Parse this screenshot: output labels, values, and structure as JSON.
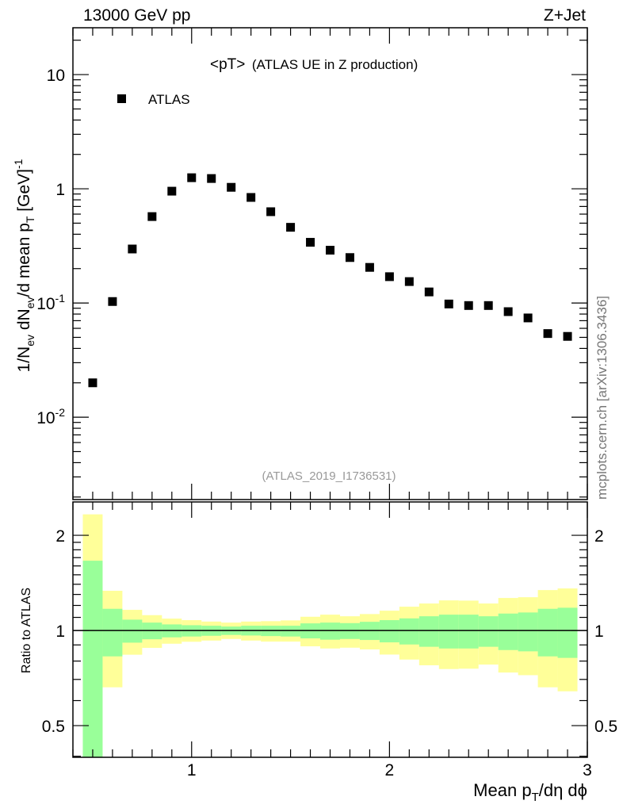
{
  "header": {
    "left": "13000 GeV pp",
    "right": "Z+Jet"
  },
  "side_label": "mcplots.cern.ch [arXiv:1306.3436]",
  "chart_data": [
    {
      "type": "scatter",
      "title_main": "<pT>",
      "title_sub": "(ATLAS UE in Z production)",
      "analysis_id": "(ATLAS_2019_I1736531)",
      "ylabel_parts": {
        "a": "1/N",
        "a_sub": "ev",
        "b": " dN",
        "b_sub": "ev",
        "c": "/d mean p",
        "c_sub": "T",
        "d": " [GeV]",
        "d_sup": "-1"
      },
      "xscale": "linear",
      "yscale": "log",
      "xlim": [
        0.4,
        3.0
      ],
      "ylim": [
        0.0019,
        25.7
      ],
      "yticks": [
        {
          "v": 10,
          "label": "10"
        },
        {
          "v": 1,
          "label": "1"
        },
        {
          "v": 0.1,
          "base": "10",
          "exp": "-1"
        },
        {
          "v": 0.01,
          "base": "10",
          "exp": "-2"
        }
      ],
      "legend": [
        {
          "name": "ATLAS",
          "marker": "square",
          "color": "#000000",
          "placement": "top-left"
        }
      ],
      "series": [
        {
          "name": "ATLAS",
          "x": [
            0.5,
            0.6,
            0.7,
            0.8,
            0.9,
            1.0,
            1.1,
            1.2,
            1.3,
            1.4,
            1.5,
            1.6,
            1.7,
            1.8,
            1.9,
            2.0,
            2.1,
            2.2,
            2.3,
            2.4,
            2.5,
            2.6,
            2.7,
            2.8,
            2.9
          ],
          "y": [
            0.02,
            0.103,
            0.297,
            0.571,
            0.953,
            1.25,
            1.23,
            1.03,
            0.84,
            0.63,
            0.46,
            0.34,
            0.29,
            0.25,
            0.205,
            0.17,
            0.154,
            0.125,
            0.098,
            0.095,
            0.095,
            0.084,
            0.074,
            0.054,
            0.051
          ]
        }
      ]
    },
    {
      "type": "area",
      "ylabel": "Ratio to ATLAS",
      "xlabel_parts": {
        "a": "Mean p",
        "a_sub": "T",
        "b": "/dη dϕ"
      },
      "xlim": [
        0.4,
        3.0
      ],
      "ylim": [
        0.397,
        2.55
      ],
      "yscale": "log",
      "xticks": [
        {
          "v": 1,
          "label": "1"
        },
        {
          "v": 2,
          "label": "2"
        },
        {
          "v": 3,
          "label": "3"
        }
      ],
      "yticks": [
        {
          "v": 2,
          "label": "2"
        },
        {
          "v": 1,
          "label": "1"
        },
        {
          "v": 0.5,
          "label": "0.5"
        }
      ],
      "bin_edges": [
        0.45,
        0.55,
        0.65,
        0.75,
        0.85,
        0.95,
        1.05,
        1.15,
        1.25,
        1.35,
        1.45,
        1.55,
        1.65,
        1.75,
        1.85,
        1.95,
        2.05,
        2.15,
        2.25,
        2.35,
        2.45,
        2.55,
        2.65,
        2.75,
        2.85,
        2.95
      ],
      "bands": [
        {
          "name": "total uncertainty",
          "color": "#ffff99",
          "upper": [
            2.33,
            1.335,
            1.162,
            1.118,
            1.09,
            1.078,
            1.067,
            1.059,
            1.067,
            1.07,
            1.076,
            1.105,
            1.122,
            1.109,
            1.127,
            1.155,
            1.189,
            1.217,
            1.245,
            1.243,
            1.217,
            1.267,
            1.274,
            1.342,
            1.358
          ],
          "lower": [
            0.3,
            0.661,
            0.838,
            0.881,
            0.908,
            0.921,
            0.929,
            0.94,
            0.929,
            0.922,
            0.922,
            0.891,
            0.877,
            0.882,
            0.871,
            0.839,
            0.809,
            0.776,
            0.755,
            0.757,
            0.78,
            0.736,
            0.722,
            0.661,
            0.642
          ]
        },
        {
          "name": "stat uncertainty",
          "color": "#99ff99",
          "upper": [
            1.662,
            1.171,
            1.082,
            1.059,
            1.045,
            1.039,
            1.035,
            1.029,
            1.035,
            1.035,
            1.035,
            1.053,
            1.059,
            1.055,
            1.065,
            1.078,
            1.092,
            1.109,
            1.122,
            1.122,
            1.109,
            1.131,
            1.14,
            1.171,
            1.18
          ],
          "lower": [
            0.3,
            0.828,
            0.915,
            0.938,
            0.951,
            0.957,
            0.962,
            0.968,
            0.964,
            0.96,
            0.957,
            0.944,
            0.935,
            0.94,
            0.933,
            0.917,
            0.903,
            0.888,
            0.877,
            0.877,
            0.888,
            0.867,
            0.859,
            0.828,
            0.819
          ]
        }
      ],
      "reference_line": 1
    }
  ]
}
